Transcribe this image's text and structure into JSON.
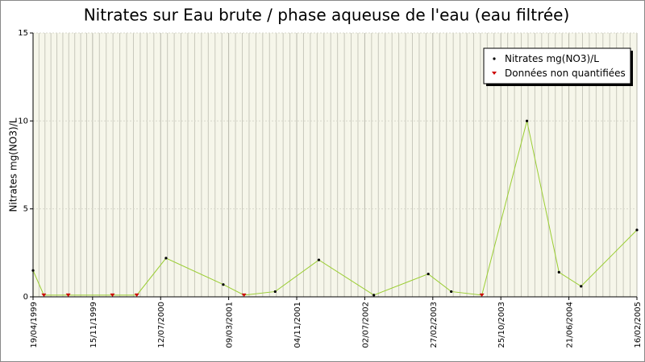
{
  "chart_data": {
    "type": "line",
    "title": "Nitrates sur Eau brute / phase aqueuse de l'eau (eau filtrée)",
    "y_label": "Nitrates mg(NO3)/L",
    "x": [
      "19/04/1999",
      "27/05/1999",
      "21/08/1999",
      "24/01/2000",
      "19/04/2000",
      "31/07/2000",
      "18/02/2001",
      "02/05/2001",
      "20/08/2001",
      "21/01/2002",
      "03/08/2002",
      "11/02/2003",
      "03/05/2003",
      "19/08/2003",
      "25/01/2004",
      "17/05/2004",
      "03/08/2004",
      "16/02/2005"
    ],
    "series": [
      {
        "name": "Nitrates mg(NO3)/L",
        "color": "#9acd32",
        "marker_color": "#000000",
        "values": [
          1.5,
          0.1,
          0.1,
          0.1,
          0.1,
          2.2,
          0.7,
          0.1,
          0.3,
          2.1,
          0.1,
          1.3,
          0.3,
          0.1,
          10,
          1.4,
          0.6,
          3.8
        ]
      },
      {
        "name": "Données non quantifiées",
        "color": "#cc0000",
        "values": [
          null,
          0.1,
          0.1,
          0.1,
          0.1,
          null,
          null,
          0.1,
          null,
          null,
          null,
          null,
          null,
          0.1,
          null,
          null,
          null,
          null
        ]
      }
    ],
    "xlim": [
      "19/04/1999",
      "16/02/2005"
    ],
    "xticks": [
      "19/04/1999",
      "15/11/1999",
      "12/07/2000",
      "09/03/2001",
      "04/11/2001",
      "02/07/2002",
      "27/02/2003",
      "25/10/2003",
      "21/06/2004",
      "16/02/2005"
    ],
    "ylim": [
      0,
      15
    ],
    "yticks": [
      0,
      5,
      10,
      15
    ],
    "grid": true,
    "legend": "top-right"
  }
}
